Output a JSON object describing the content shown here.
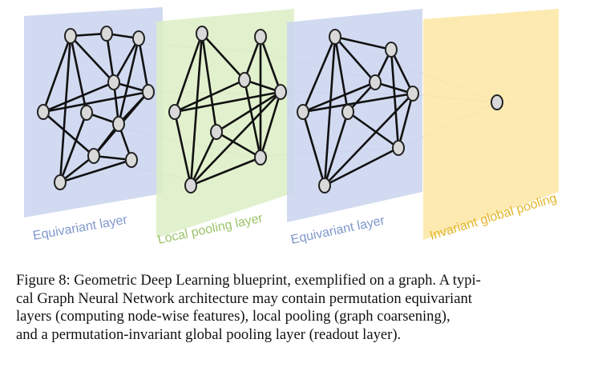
{
  "figure": {
    "layers": [
      {
        "label": "Equivariant layer",
        "fill": "#c9d3ef",
        "edge_color": "#111111",
        "text_color": "#7f97cc"
      },
      {
        "label": "Local pooling layer",
        "fill": "#dcefc4",
        "edge_color": "#111111",
        "text_color": "#9cc46a"
      },
      {
        "label": "Equivariant layer",
        "fill": "#c9d3ef",
        "edge_color": "#111111",
        "text_color": "#7f97cc"
      },
      {
        "label": "Invariant global pooling",
        "fill": "#fbe6a3",
        "edge_color": "#111111",
        "text_color": "#e3b52a"
      }
    ]
  },
  "caption": {
    "lines": [
      "Figure 8: Geometric Deep Learning blueprint, exemplified on a graph.  A typi-",
      "cal Graph Neural Network architecture may contain permutation equivariant",
      "layers (computing node-wise features), local pooling (graph coarsening),",
      "and a permutation-invariant global pooling layer (readout layer)."
    ]
  }
}
